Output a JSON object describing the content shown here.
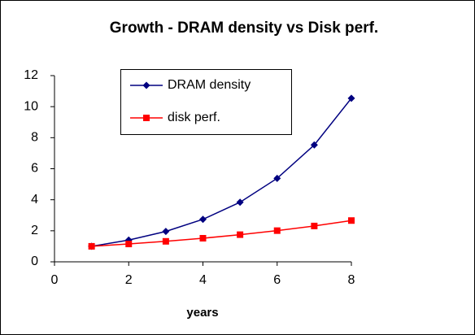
{
  "chart_data": {
    "type": "line",
    "title": "Growth - DRAM density vs Disk perf.",
    "x_label": "years",
    "x": [
      1,
      2,
      3,
      4,
      5,
      6,
      7,
      8
    ],
    "series": [
      {
        "name": "DRAM density",
        "color": "#000080",
        "marker": "diamond",
        "values": [
          1,
          1.4,
          1.96,
          2.74,
          3.84,
          5.38,
          7.53,
          10.54
        ]
      },
      {
        "name": "disk perf.",
        "color": "#ff0000",
        "marker": "square",
        "values": [
          1,
          1.15,
          1.32,
          1.52,
          1.75,
          2.01,
          2.31,
          2.66
        ]
      }
    ],
    "xlim": [
      0,
      8
    ],
    "xticks": [
      0,
      2,
      4,
      6,
      8
    ],
    "ylim": [
      0,
      12
    ],
    "yticks": [
      0,
      2,
      4,
      6,
      8,
      10,
      12
    ]
  }
}
